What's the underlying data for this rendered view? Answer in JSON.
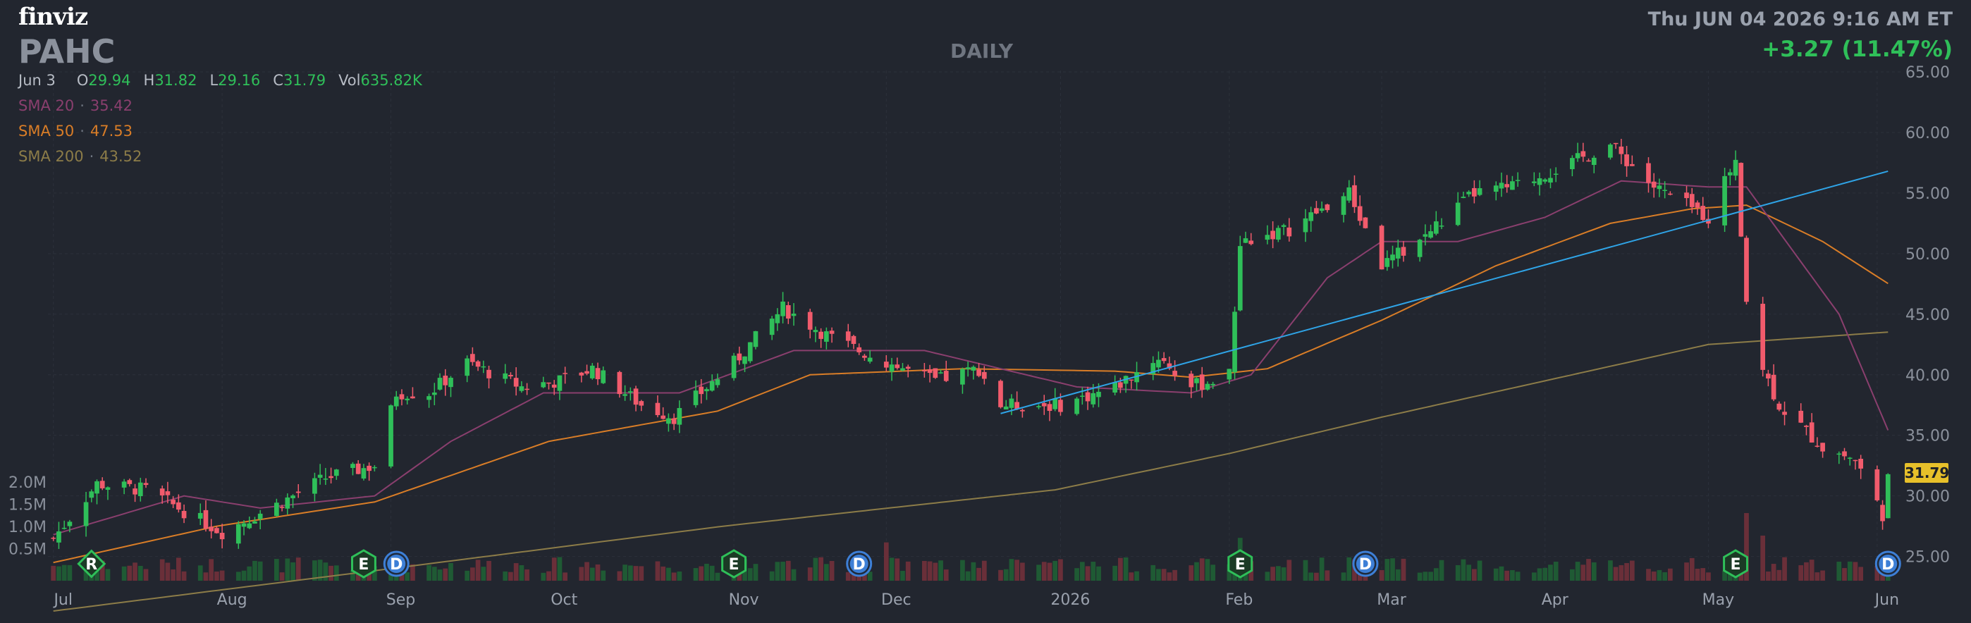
{
  "brand": "finviz",
  "ticker": "PAHC",
  "timeframe": "DAILY",
  "datetime": "Thu JUN 04 2026 9:16 AM ET",
  "change": "+3.27 (11.47%)",
  "ohlc": {
    "date": "Jun 3",
    "open_label": "O",
    "open": "29.94",
    "high_label": "H",
    "high": "31.82",
    "low_label": "L",
    "low": "29.16",
    "close_label": "C",
    "close": "31.79",
    "vol_label": "Vol",
    "vol": "635.82K"
  },
  "indicators": [
    {
      "name": "SMA 20",
      "value": "35.42",
      "color": "#8a3f6e"
    },
    {
      "name": "SMA 50",
      "value": "47.53",
      "color": "#d97d27"
    },
    {
      "name": "SMA 200",
      "value": "43.52",
      "color": "#8c7c48"
    }
  ],
  "last_price": "31.79",
  "colors": {
    "up": "#2fbf59",
    "down": "#f15b6c",
    "background": "#22262f",
    "grid": "#2c313b",
    "trendline": "#2fa4e7",
    "marker_earnings": "#2fbf59",
    "marker_dividend": "#3d7fd6"
  },
  "chart_data": {
    "type": "candlestick",
    "title": "PAHC",
    "ylim": [
      23,
      65
    ],
    "y_ticks": [
      "25.00",
      "30.00",
      "35.00",
      "40.00",
      "45.00",
      "50.00",
      "55.00",
      "60.00",
      "65.00"
    ],
    "volume_ticks": [
      "0.5M",
      "1.0M",
      "1.5M",
      "2.0M"
    ],
    "x_labels": [
      "Jul",
      "Aug",
      "Sep",
      "Oct",
      "Nov",
      "Dec",
      "2026",
      "Feb",
      "Mar",
      "Apr",
      "May",
      "Jun"
    ],
    "grid": true,
    "price_waypoints": [
      [
        "2025-07-01",
        26.5
      ],
      [
        "2025-07-09",
        31.0
      ],
      [
        "2025-07-18",
        30.5
      ],
      [
        "2025-08-01",
        27.0
      ],
      [
        "2025-08-12",
        29.5
      ],
      [
        "2025-08-20",
        31.5
      ],
      [
        "2025-08-29",
        32.5
      ],
      [
        "2025-09-02",
        38.5
      ],
      [
        "2025-09-08",
        38.5
      ],
      [
        "2025-09-15",
        41.0
      ],
      [
        "2025-09-25",
        39.0
      ],
      [
        "2025-10-02",
        39.5
      ],
      [
        "2025-10-08",
        40.5
      ],
      [
        "2025-10-17",
        37.5
      ],
      [
        "2025-10-23",
        36.5
      ],
      [
        "2025-11-03",
        41.0
      ],
      [
        "2025-11-12",
        45.5
      ],
      [
        "2025-11-21",
        43.0
      ],
      [
        "2025-12-01",
        41.0
      ],
      [
        "2025-12-10",
        39.5
      ],
      [
        "2025-12-18",
        40.5
      ],
      [
        "2025-12-22",
        37.5
      ],
      [
        "2026-01-02",
        37.5
      ],
      [
        "2026-01-12",
        39.0
      ],
      [
        "2026-01-20",
        41.5
      ],
      [
        "2026-01-26",
        39.0
      ],
      [
        "2026-02-02",
        40.0
      ],
      [
        "2026-02-04",
        51.0
      ],
      [
        "2026-02-13",
        52.0
      ],
      [
        "2026-02-24",
        55.0
      ],
      [
        "2026-03-02",
        49.0
      ],
      [
        "2026-03-10",
        51.5
      ],
      [
        "2026-03-19",
        55.0
      ],
      [
        "2026-03-26",
        55.5
      ],
      [
        "2026-04-06",
        57.5
      ],
      [
        "2026-04-13",
        59.0
      ],
      [
        "2026-04-21",
        55.5
      ],
      [
        "2026-05-01",
        53.0
      ],
      [
        "2026-05-06",
        58.0
      ],
      [
        "2026-05-08",
        46.0
      ],
      [
        "2026-05-11",
        40.5
      ],
      [
        "2026-05-14",
        37.5
      ],
      [
        "2026-05-22",
        34.0
      ],
      [
        "2026-05-28",
        33.0
      ],
      [
        "2026-06-02",
        28.5
      ],
      [
        "2026-06-03",
        31.79
      ]
    ],
    "sma20_waypoints": [
      [
        "2025-07-01",
        26.8
      ],
      [
        "2025-07-25",
        30.0
      ],
      [
        "2025-08-08",
        29.0
      ],
      [
        "2025-08-29",
        30.0
      ],
      [
        "2025-09-12",
        34.5
      ],
      [
        "2025-09-29",
        38.5
      ],
      [
        "2025-10-24",
        38.5
      ],
      [
        "2025-11-14",
        42.0
      ],
      [
        "2025-12-08",
        42.0
      ],
      [
        "2026-01-05",
        39.0
      ],
      [
        "2026-01-26",
        38.5
      ],
      [
        "2026-02-06",
        40.0
      ],
      [
        "2026-02-20",
        48.0
      ],
      [
        "2026-03-02",
        51.0
      ],
      [
        "2026-03-16",
        51.0
      ],
      [
        "2026-04-01",
        53.0
      ],
      [
        "2026-04-15",
        56.0
      ],
      [
        "2026-05-01",
        55.5
      ],
      [
        "2026-05-08",
        55.5
      ],
      [
        "2026-05-25",
        45.0
      ],
      [
        "2026-06-03",
        35.42
      ]
    ],
    "sma50_waypoints": [
      [
        "2025-07-01",
        24.5
      ],
      [
        "2025-07-31",
        27.5
      ],
      [
        "2025-08-29",
        29.5
      ],
      [
        "2025-09-30",
        34.5
      ],
      [
        "2025-10-31",
        37.0
      ],
      [
        "2025-11-17",
        40.0
      ],
      [
        "2025-12-15",
        40.5
      ],
      [
        "2026-01-12",
        40.3
      ],
      [
        "2026-01-26",
        39.8
      ],
      [
        "2026-02-09",
        40.5
      ],
      [
        "2026-03-02",
        44.5
      ],
      [
        "2026-03-23",
        49.0
      ],
      [
        "2026-04-13",
        52.5
      ],
      [
        "2026-04-28",
        53.7
      ],
      [
        "2026-05-08",
        54.0
      ],
      [
        "2026-05-22",
        51.0
      ],
      [
        "2026-06-03",
        47.53
      ]
    ],
    "sma200_waypoints": [
      [
        "2025-07-01",
        20.5
      ],
      [
        "2025-09-01",
        24.0
      ],
      [
        "2025-11-01",
        27.5
      ],
      [
        "2026-01-01",
        30.5
      ],
      [
        "2026-02-02",
        33.5
      ],
      [
        "2026-03-02",
        36.5
      ],
      [
        "2026-04-01",
        39.5
      ],
      [
        "2026-05-01",
        42.5
      ],
      [
        "2026-06-03",
        43.52
      ]
    ],
    "trendline": {
      "start": [
        "2025-12-22",
        36.8
      ],
      "end": [
        "2026-06-03",
        56.8
      ]
    },
    "volume_millions_typical": 0.35,
    "volume_spikes": [
      [
        "2026-02-04",
        0.95
      ],
      [
        "2025-12-01",
        0.85
      ],
      [
        "2026-05-08",
        1.5
      ],
      [
        "2026-05-11",
        1.0
      ]
    ],
    "event_markers": [
      {
        "date": "2025-07-08",
        "label": "R"
      },
      {
        "date": "2025-08-27",
        "label": "E"
      },
      {
        "date": "2025-09-02",
        "label": "D"
      },
      {
        "date": "2025-11-03",
        "label": "E"
      },
      {
        "date": "2025-11-26",
        "label": "D"
      },
      {
        "date": "2026-02-04",
        "label": "E"
      },
      {
        "date": "2026-02-27",
        "label": "D"
      },
      {
        "date": "2026-05-06",
        "label": "E"
      },
      {
        "date": "2026-06-03",
        "label": "D"
      }
    ]
  }
}
